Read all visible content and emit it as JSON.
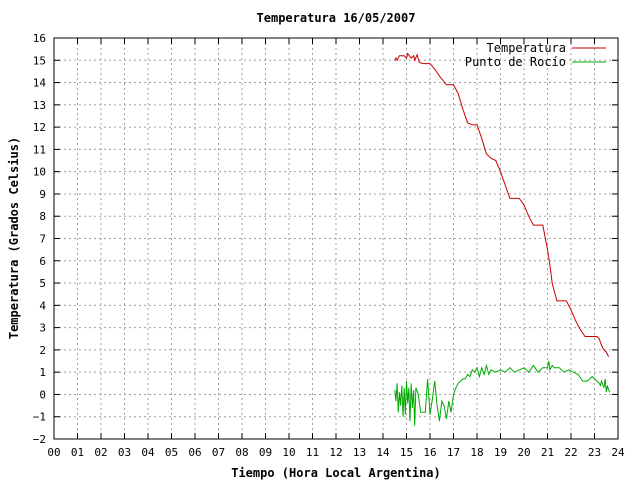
{
  "chart_data": {
    "type": "line",
    "title": "Temperatura 16/05/2007",
    "xlabel": "Tiempo (Hora Local Argentina)",
    "ylabel": "Temperatura (Grados Celsius)",
    "xlim": [
      0,
      24
    ],
    "ylim": [
      -2,
      16
    ],
    "x_ticks": [
      "00",
      "01",
      "02",
      "03",
      "04",
      "05",
      "06",
      "07",
      "08",
      "09",
      "10",
      "11",
      "12",
      "13",
      "14",
      "15",
      "16",
      "17",
      "18",
      "19",
      "20",
      "21",
      "22",
      "23",
      "24"
    ],
    "y_ticks": [
      "16",
      "15",
      "14",
      "13",
      "12",
      "11",
      "10",
      "9",
      "8",
      "7",
      "6",
      "5",
      "4",
      "3",
      "2",
      "1",
      "0",
      "−1",
      "−2"
    ],
    "grid": true,
    "legend_position": "top-right",
    "series": [
      {
        "name": "Temperatura",
        "color": "#cc0000",
        "x": [
          14.5,
          14.55,
          14.6,
          14.7,
          14.9,
          15.0,
          15.05,
          15.2,
          15.3,
          15.35,
          15.45,
          15.55,
          15.7,
          16.0,
          16.2,
          16.4,
          16.7,
          17.0,
          17.2,
          17.4,
          17.6,
          17.8,
          18.0,
          18.2,
          18.4,
          18.6,
          18.8,
          19.0,
          19.2,
          19.4,
          19.6,
          19.8,
          20.0,
          20.2,
          20.4,
          20.6,
          20.8,
          21.0,
          21.1,
          21.2,
          21.3,
          21.4,
          21.6,
          21.8,
          22.0,
          22.2,
          22.4,
          22.6,
          22.8,
          23.0,
          23.1,
          23.2,
          23.3,
          23.4,
          23.5,
          23.6
        ],
        "y": [
          15.0,
          15.1,
          15.0,
          15.2,
          15.2,
          15.1,
          15.3,
          15.1,
          15.2,
          15.0,
          15.25,
          14.9,
          14.85,
          14.85,
          14.6,
          14.3,
          13.9,
          13.9,
          13.5,
          12.8,
          12.2,
          12.1,
          12.1,
          11.5,
          10.8,
          10.6,
          10.5,
          10.0,
          9.4,
          8.8,
          8.8,
          8.8,
          8.5,
          8.0,
          7.6,
          7.6,
          7.6,
          6.5,
          5.8,
          5.0,
          4.6,
          4.2,
          4.2,
          4.2,
          3.8,
          3.3,
          2.9,
          2.6,
          2.6,
          2.6,
          2.6,
          2.5,
          2.2,
          2.0,
          1.9,
          1.7
        ]
      },
      {
        "name": "Punto de Rocío",
        "color": "#00aa00",
        "x": [
          14.5,
          14.55,
          14.6,
          14.65,
          14.7,
          14.75,
          14.8,
          14.85,
          14.9,
          14.95,
          15.0,
          15.05,
          15.1,
          15.15,
          15.2,
          15.25,
          15.3,
          15.35,
          15.4,
          15.5,
          15.6,
          15.7,
          15.8,
          15.9,
          16.0,
          16.1,
          16.2,
          16.3,
          16.4,
          16.5,
          16.6,
          16.7,
          16.8,
          16.9,
          17.0,
          17.1,
          17.2,
          17.3,
          17.4,
          17.5,
          17.6,
          17.7,
          17.8,
          17.9,
          18.0,
          18.1,
          18.2,
          18.3,
          18.4,
          18.5,
          18.6,
          18.8,
          19.0,
          19.2,
          19.4,
          19.6,
          19.8,
          20.0,
          20.2,
          20.4,
          20.6,
          20.8,
          21.0,
          21.05,
          21.1,
          21.2,
          21.3,
          21.5,
          21.7,
          21.9,
          22.1,
          22.3,
          22.5,
          22.7,
          22.9,
          23.1,
          23.2,
          23.25,
          23.3,
          23.4,
          23.45,
          23.5,
          23.55,
          23.6,
          23.65
        ],
        "y": [
          0.2,
          -0.3,
          0.5,
          -0.8,
          0.1,
          -0.5,
          0.4,
          -1.0,
          0.3,
          -0.9,
          0.6,
          -0.4,
          0.3,
          -1.2,
          0.5,
          -0.6,
          0.2,
          -1.4,
          0.3,
          0.0,
          -0.8,
          -0.8,
          -0.8,
          0.7,
          -0.9,
          -0.2,
          0.6,
          -0.5,
          -1.2,
          -0.3,
          -0.5,
          -1.1,
          -0.3,
          -0.8,
          0.0,
          0.3,
          0.5,
          0.6,
          0.7,
          0.7,
          0.9,
          0.8,
          1.1,
          1.0,
          1.2,
          0.8,
          1.2,
          0.9,
          1.3,
          0.9,
          1.1,
          1.0,
          1.1,
          1.0,
          1.2,
          1.0,
          1.1,
          1.2,
          1.0,
          1.3,
          1.0,
          1.2,
          1.2,
          1.5,
          1.1,
          1.3,
          1.2,
          1.2,
          1.0,
          1.1,
          1.0,
          0.9,
          0.6,
          0.6,
          0.8,
          0.6,
          0.5,
          0.4,
          0.6,
          0.3,
          0.7,
          0.1,
          0.4,
          0.2,
          0.1
        ]
      }
    ]
  }
}
